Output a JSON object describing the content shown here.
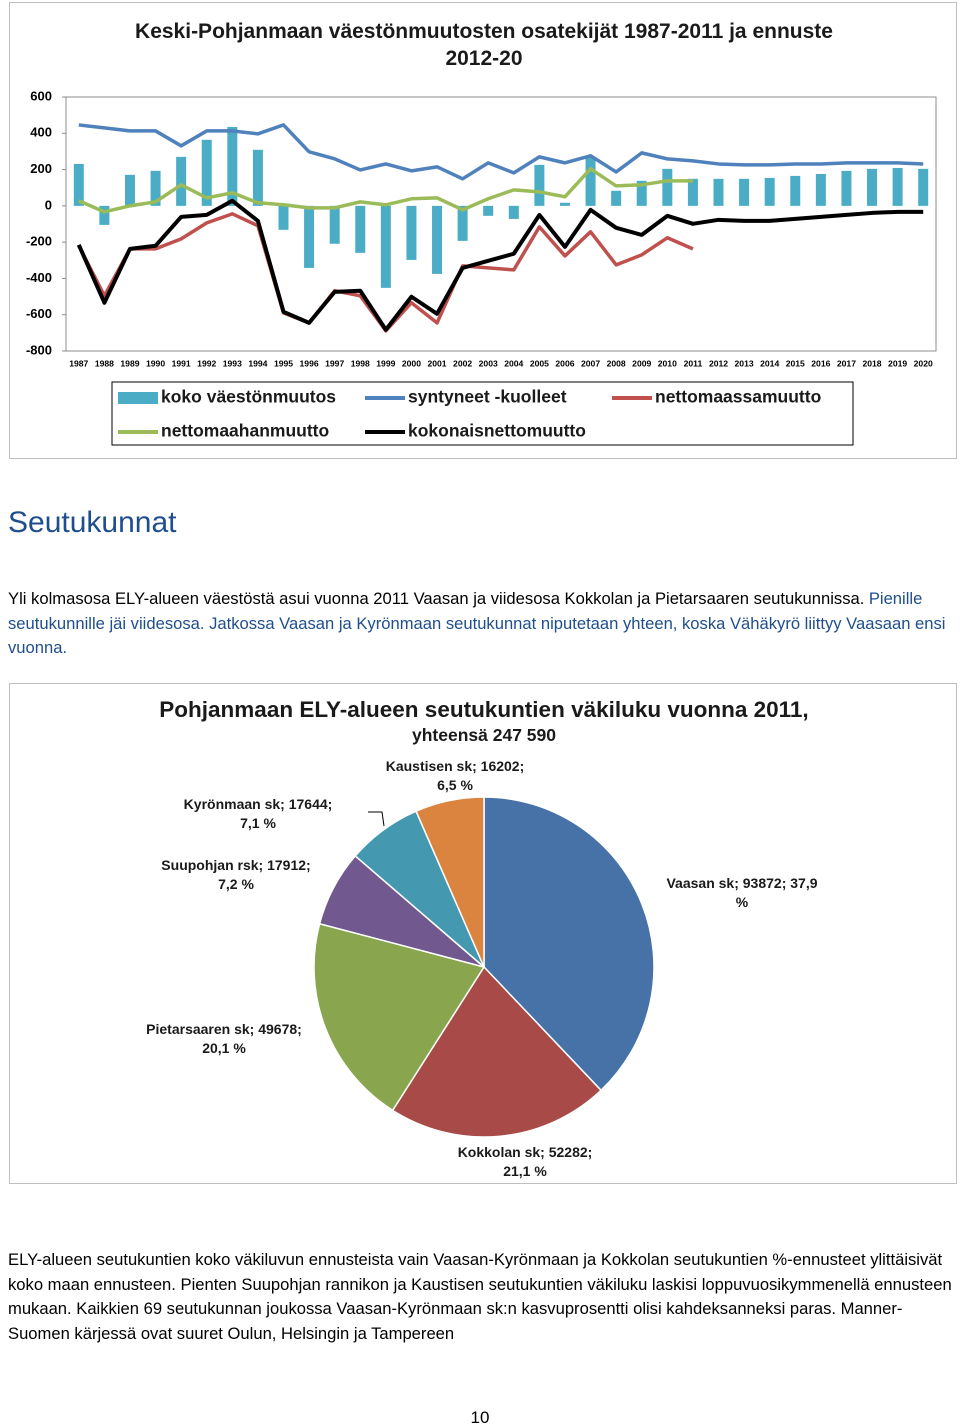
{
  "chart_data": [
    {
      "type": "combo",
      "title": "Keski-Pohjanmaan väestönmuutosten osatekijät 1987-2011 ja ennuste 2012-20",
      "categories": [
        "1987",
        "1988",
        "1989",
        "1990",
        "1991",
        "1992",
        "1993",
        "1994",
        "1995",
        "1996",
        "1997",
        "1998",
        "1999",
        "2000",
        "2001",
        "2002",
        "2003",
        "2004",
        "2005",
        "2006",
        "2007",
        "2008",
        "2009",
        "2010",
        "2011",
        "2012",
        "2013",
        "2014",
        "2015",
        "2016",
        "2017",
        "2018",
        "2019",
        "2020"
      ],
      "ylim": [
        -800,
        600
      ],
      "yticks": [
        -800,
        -600,
        -400,
        -200,
        0,
        200,
        400,
        600
      ],
      "grid": false,
      "legend": "bottom",
      "series": [
        {
          "name": "koko väestönmuutos",
          "type": "bar",
          "color": "#4bacc6",
          "values": [
            231,
            -105,
            171,
            193,
            270,
            364,
            435,
            309,
            -132,
            -342,
            -209,
            -259,
            -452,
            -298,
            -375,
            -193,
            -55,
            -72,
            226,
            17,
            270,
            83,
            138,
            204,
            149,
            149,
            149,
            154,
            165,
            176,
            193,
            204,
            209,
            204
          ]
        },
        {
          "name": "syntyneet -kuolleet",
          "type": "line",
          "color": "#4f81bd",
          "values": [
            446,
            430,
            413,
            413,
            331,
            413,
            413,
            397,
            446,
            298,
            259,
            198,
            231,
            193,
            215,
            149,
            237,
            182,
            270,
            237,
            276,
            187,
            292,
            259,
            248,
            231,
            226,
            226,
            231,
            231,
            237,
            237,
            237,
            231
          ]
        },
        {
          "name": "nettomaassamuutto",
          "type": "line",
          "color": "#c0504d",
          "values": [
            -220,
            -496,
            -237,
            -237,
            -182,
            -94,
            -44,
            -110,
            -590,
            -645,
            -468,
            -496,
            -689,
            -534,
            -645,
            -331,
            -342,
            -353,
            -116,
            -276,
            -143,
            -325,
            -270,
            -176,
            -237,
            null,
            null,
            null,
            null,
            null,
            null,
            null,
            null,
            null
          ]
        },
        {
          "name": "nettomaahanmuutto",
          "type": "line",
          "color": "#9bbb59",
          "values": [
            28,
            -33,
            0,
            22,
            116,
            44,
            72,
            17,
            6,
            -11,
            -11,
            22,
            6,
            39,
            44,
            -22,
            39,
            88,
            77,
            50,
            204,
            110,
            116,
            138,
            138,
            null,
            null,
            null,
            null,
            null,
            null,
            null,
            null,
            null
          ]
        },
        {
          "name": "kokonaisnettomuutto",
          "type": "line",
          "color": "#000000",
          "values": [
            -215,
            -534,
            -237,
            -220,
            -61,
            -50,
            28,
            -83,
            -584,
            -645,
            -474,
            -468,
            -683,
            -501,
            -595,
            -342,
            -303,
            -264,
            -50,
            -226,
            -22,
            -121,
            -160,
            -55,
            -99,
            -77,
            -83,
            -83,
            -72,
            -61,
            -50,
            -39,
            -33,
            -33
          ]
        }
      ]
    },
    {
      "type": "pie",
      "title": "Pohjanmaan ELY-alueen seutukuntien väkiluku vuonna 2011,",
      "subtitle": "yhteensä  247 590",
      "values": [
        93872,
        52282,
        49678,
        17912,
        17644,
        16202
      ],
      "value_labels": [
        "Vaasan sk; 93872; 37,9\n%",
        "Kokkolan sk; 52282;\n21,1 %",
        "Pietarsaaren sk; 49678;\n20,1 %",
        "Suupohjan rsk; 17912;\n7,2 %",
        "Kyrönmaan sk; 17644;\n7,1 %",
        "Kaustisen sk; 16202;\n6,5 %"
      ],
      "colors": [
        "#4672a8",
        "#a84a47",
        "#89a64f",
        "#71598f",
        "#4498b0",
        "#db8440"
      ]
    }
  ],
  "heading": "Seutukunnat",
  "paragraphs": [
    [
      "Yli kolmasosa ELY-alueen väestöstä asui vuonna 2011 Vaasan ja viidesosa Kokkolan ja Pietarsaaren seutukunnissa.",
      "Pienille seutukunnille jäi viidesosa. Jatkossa Vaasan ja Kyrönmaan seutukunnat niputetaan yhteen, koska Vähäkyrö liittyy Vaasaan ensi vuonna."
    ],
    [
      "ELY-alueen seutukuntien koko väkiluvun ennusteista vain Vaasan-Kyrönmaan ja Kokkolan seutukuntien %-ennusteet ylittäisivät koko maan ennusteen. Pienten Suupohjan rannikon ja Kaustisen seutukuntien väkiluku laskisi loppuvuosikymmenellä ennusteen mukaan. Kaikkien 69 seutukunnan joukossa Vaasan-Kyrönmaan sk:n kasvuprosentti olisi kahdeksanneksi paras. Manner-Suomen kärjessä ovat suuret Oulun, Helsingin ja Tampereen"
    ]
  ],
  "page_number": 10
}
